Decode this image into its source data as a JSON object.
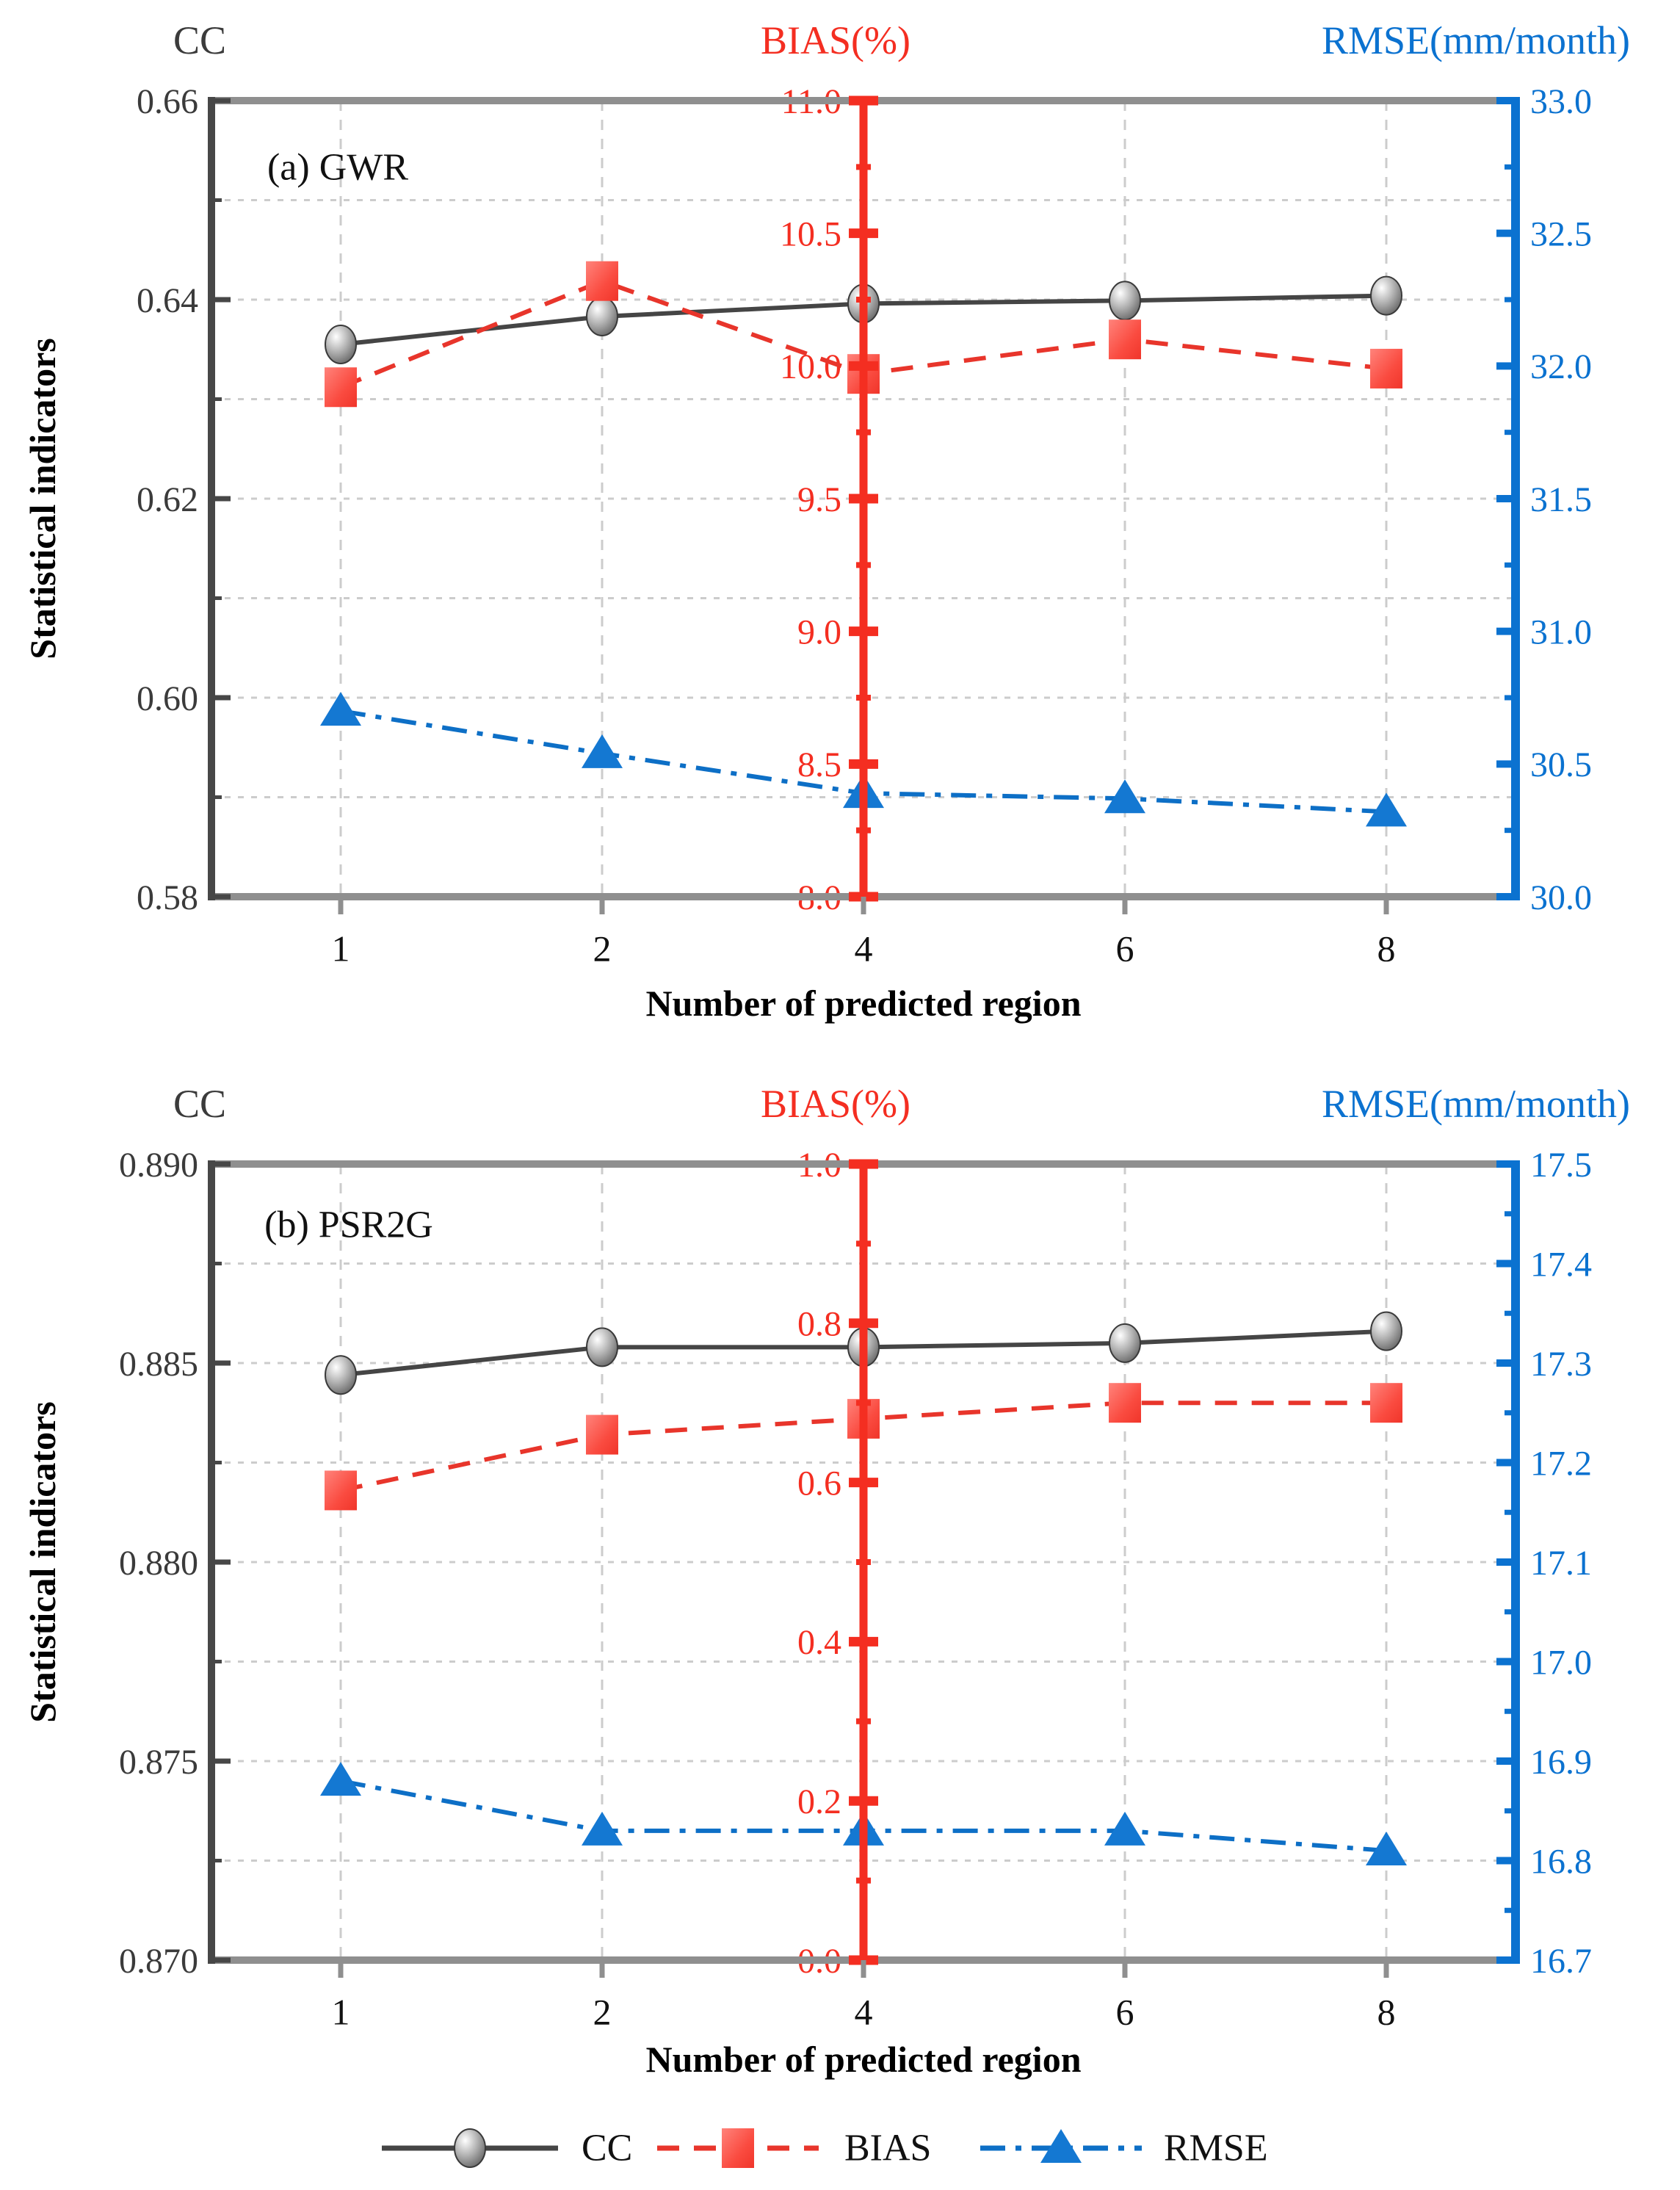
{
  "figure": {
    "ylabel_left": "Statistical indicators",
    "xlabel": "Number of predicted region"
  },
  "palette": {
    "cc_line": "#454545",
    "cc_marker_edge": "#3a3a3a",
    "bias_line": "#e8352b",
    "bias_fill": "#fa4b40",
    "bias_axis": "#f42e21",
    "rmse_line": "#0d6fc6",
    "rmse_fill": "#1478d2",
    "rmse_axis": "#0b72d0",
    "spine_gray": "#8f8f8f",
    "spine_dark": "#474747",
    "grid": "#cccccc",
    "tick_text_dark": "#3b3b3b",
    "x_text": "#111111"
  },
  "legend": {
    "items": [
      {
        "label": "CC",
        "series": "cc"
      },
      {
        "label": "BIAS",
        "series": "bias"
      },
      {
        "label": "RMSE",
        "series": "rmse"
      }
    ]
  },
  "chart_data": [
    {
      "id": "a",
      "type": "line",
      "panel_label": "(a) GWR",
      "x_categories": [
        "1",
        "2",
        "4",
        "6",
        "8"
      ],
      "xlabel": "Number of predicted region",
      "ylabel": "Statistical indicators",
      "grid": "dashed horizontal at every half major step and vertical at each x tick",
      "axes": {
        "cc": {
          "title": "CC",
          "side": "left",
          "color": "#3b3b3b",
          "min": 0.58,
          "max": 0.66,
          "major_step": 0.02,
          "tick_decimals": 2,
          "tick_labels": [
            "0.66",
            "0.64",
            "0.62",
            "0.60",
            "0.58"
          ]
        },
        "bias": {
          "title": "BIAS(%)",
          "side": "center",
          "color": "#f42e21",
          "min": 8.0,
          "max": 11.0,
          "major_step": 0.5,
          "tick_decimals": 1,
          "tick_labels": [
            "11.0",
            "10.5",
            "10.0",
            "9.5",
            "9.0",
            "8.5",
            "8.0"
          ]
        },
        "rmse": {
          "title": "RMSE(mm/month)",
          "side": "right",
          "color": "#0b72d0",
          "min": 30.0,
          "max": 33.0,
          "major_step": 0.5,
          "tick_decimals": 1,
          "tick_labels": [
            "33.0",
            "32.5",
            "32.0",
            "31.5",
            "31.0",
            "30.5",
            "30.0"
          ]
        }
      },
      "series": [
        {
          "name": "CC",
          "axis": "cc",
          "values": [
            0.6355,
            0.6383,
            0.6396,
            0.6399,
            0.6404
          ]
        },
        {
          "name": "BIAS",
          "axis": "bias",
          "values": [
            9.92,
            10.32,
            9.97,
            10.1,
            9.99
          ]
        },
        {
          "name": "RMSE",
          "axis": "rmse",
          "values": [
            30.7,
            30.54,
            30.39,
            30.37,
            30.32
          ]
        }
      ]
    },
    {
      "id": "b",
      "type": "line",
      "panel_label": "(b) PSR2G",
      "x_categories": [
        "1",
        "2",
        "4",
        "6",
        "8"
      ],
      "xlabel": "Number of predicted region",
      "ylabel": "Statistical indicators",
      "grid": "dashed horizontal at every half major step and vertical at each x tick",
      "axes": {
        "cc": {
          "title": "CC",
          "side": "left",
          "color": "#3b3b3b",
          "min": 0.87,
          "max": 0.89,
          "major_step": 0.005,
          "tick_decimals": 3,
          "tick_labels": [
            "0.890",
            "0.885",
            "0.880",
            "0.875",
            "0.870"
          ]
        },
        "bias": {
          "title": "BIAS(%)",
          "side": "center",
          "color": "#f42e21",
          "min": 0.0,
          "max": 1.0,
          "major_step": 0.2,
          "tick_decimals": 1,
          "tick_labels": [
            "1.0",
            "0.8",
            "0.6",
            "0.4",
            "0.2",
            "0.0"
          ]
        },
        "rmse": {
          "title": "RMSE(mm/month)",
          "side": "right",
          "color": "#0b72d0",
          "min": 16.7,
          "max": 17.5,
          "major_step": 0.1,
          "tick_decimals": 1,
          "tick_labels": [
            "17.5",
            "17.4",
            "17.3",
            "17.2",
            "17.1",
            "17.0",
            "16.9",
            "16.8",
            "16.7"
          ]
        }
      },
      "series": [
        {
          "name": "CC",
          "axis": "cc",
          "values": [
            0.8847,
            0.8854,
            0.8854,
            0.8855,
            0.8858
          ]
        },
        {
          "name": "BIAS",
          "axis": "bias",
          "values": [
            0.59,
            0.66,
            0.68,
            0.7,
            0.7
          ]
        },
        {
          "name": "RMSE",
          "axis": "rmse",
          "values": [
            16.88,
            16.83,
            16.83,
            16.83,
            16.81
          ]
        }
      ]
    }
  ]
}
